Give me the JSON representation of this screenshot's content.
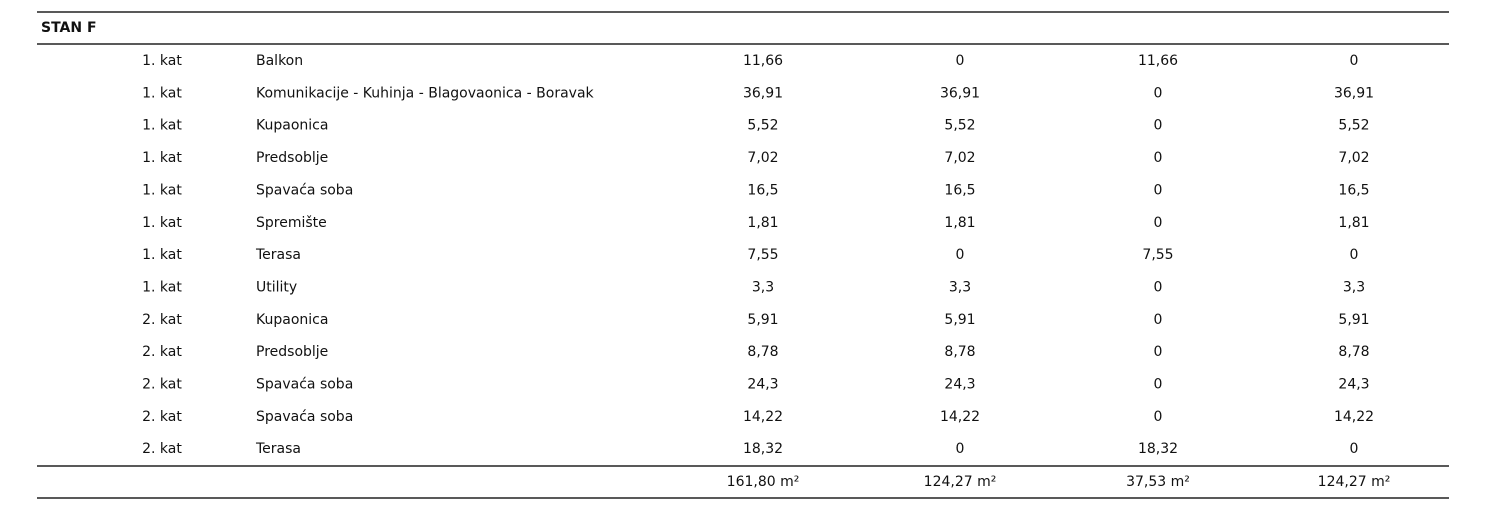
{
  "section": {
    "title": "STAN F"
  },
  "table": {
    "rows": [
      [
        "1. kat",
        "Balkon",
        "11,66",
        "0",
        "11,66",
        "0"
      ],
      [
        "1. kat",
        "Komunikacije - Kuhinja - Blagovaonica - Boravak",
        "36,91",
        "36,91",
        "0",
        "36,91"
      ],
      [
        "1. kat",
        "Kupaonica",
        "5,52",
        "5,52",
        "0",
        "5,52"
      ],
      [
        "1. kat",
        "Predsoblje",
        "7,02",
        "7,02",
        "0",
        "7,02"
      ],
      [
        "1. kat",
        "Spavaća soba",
        "16,5",
        "16,5",
        "0",
        "16,5"
      ],
      [
        "1. kat",
        "Spremište",
        "1,81",
        "1,81",
        "0",
        "1,81"
      ],
      [
        "1. kat",
        "Terasa",
        "7,55",
        "0",
        "7,55",
        "0"
      ],
      [
        "1. kat",
        "Utility",
        "3,3",
        "3,3",
        "0",
        "3,3"
      ],
      [
        "2. kat",
        "Kupaonica",
        "5,91",
        "5,91",
        "0",
        "5,91"
      ],
      [
        "2. kat",
        "Predsoblje",
        "8,78",
        "8,78",
        "0",
        "8,78"
      ],
      [
        "2. kat",
        "Spavaća soba",
        "24,3",
        "24,3",
        "0",
        "24,3"
      ],
      [
        "2. kat",
        "Spavaća soba",
        "14,22",
        "14,22",
        "0",
        "14,22"
      ],
      [
        "2. kat",
        "Terasa",
        "18,32",
        "0",
        "18,32",
        "0"
      ]
    ],
    "totals": [
      "161,80 m²",
      "124,27 m²",
      "37,53 m²",
      "124,27 m²"
    ]
  }
}
